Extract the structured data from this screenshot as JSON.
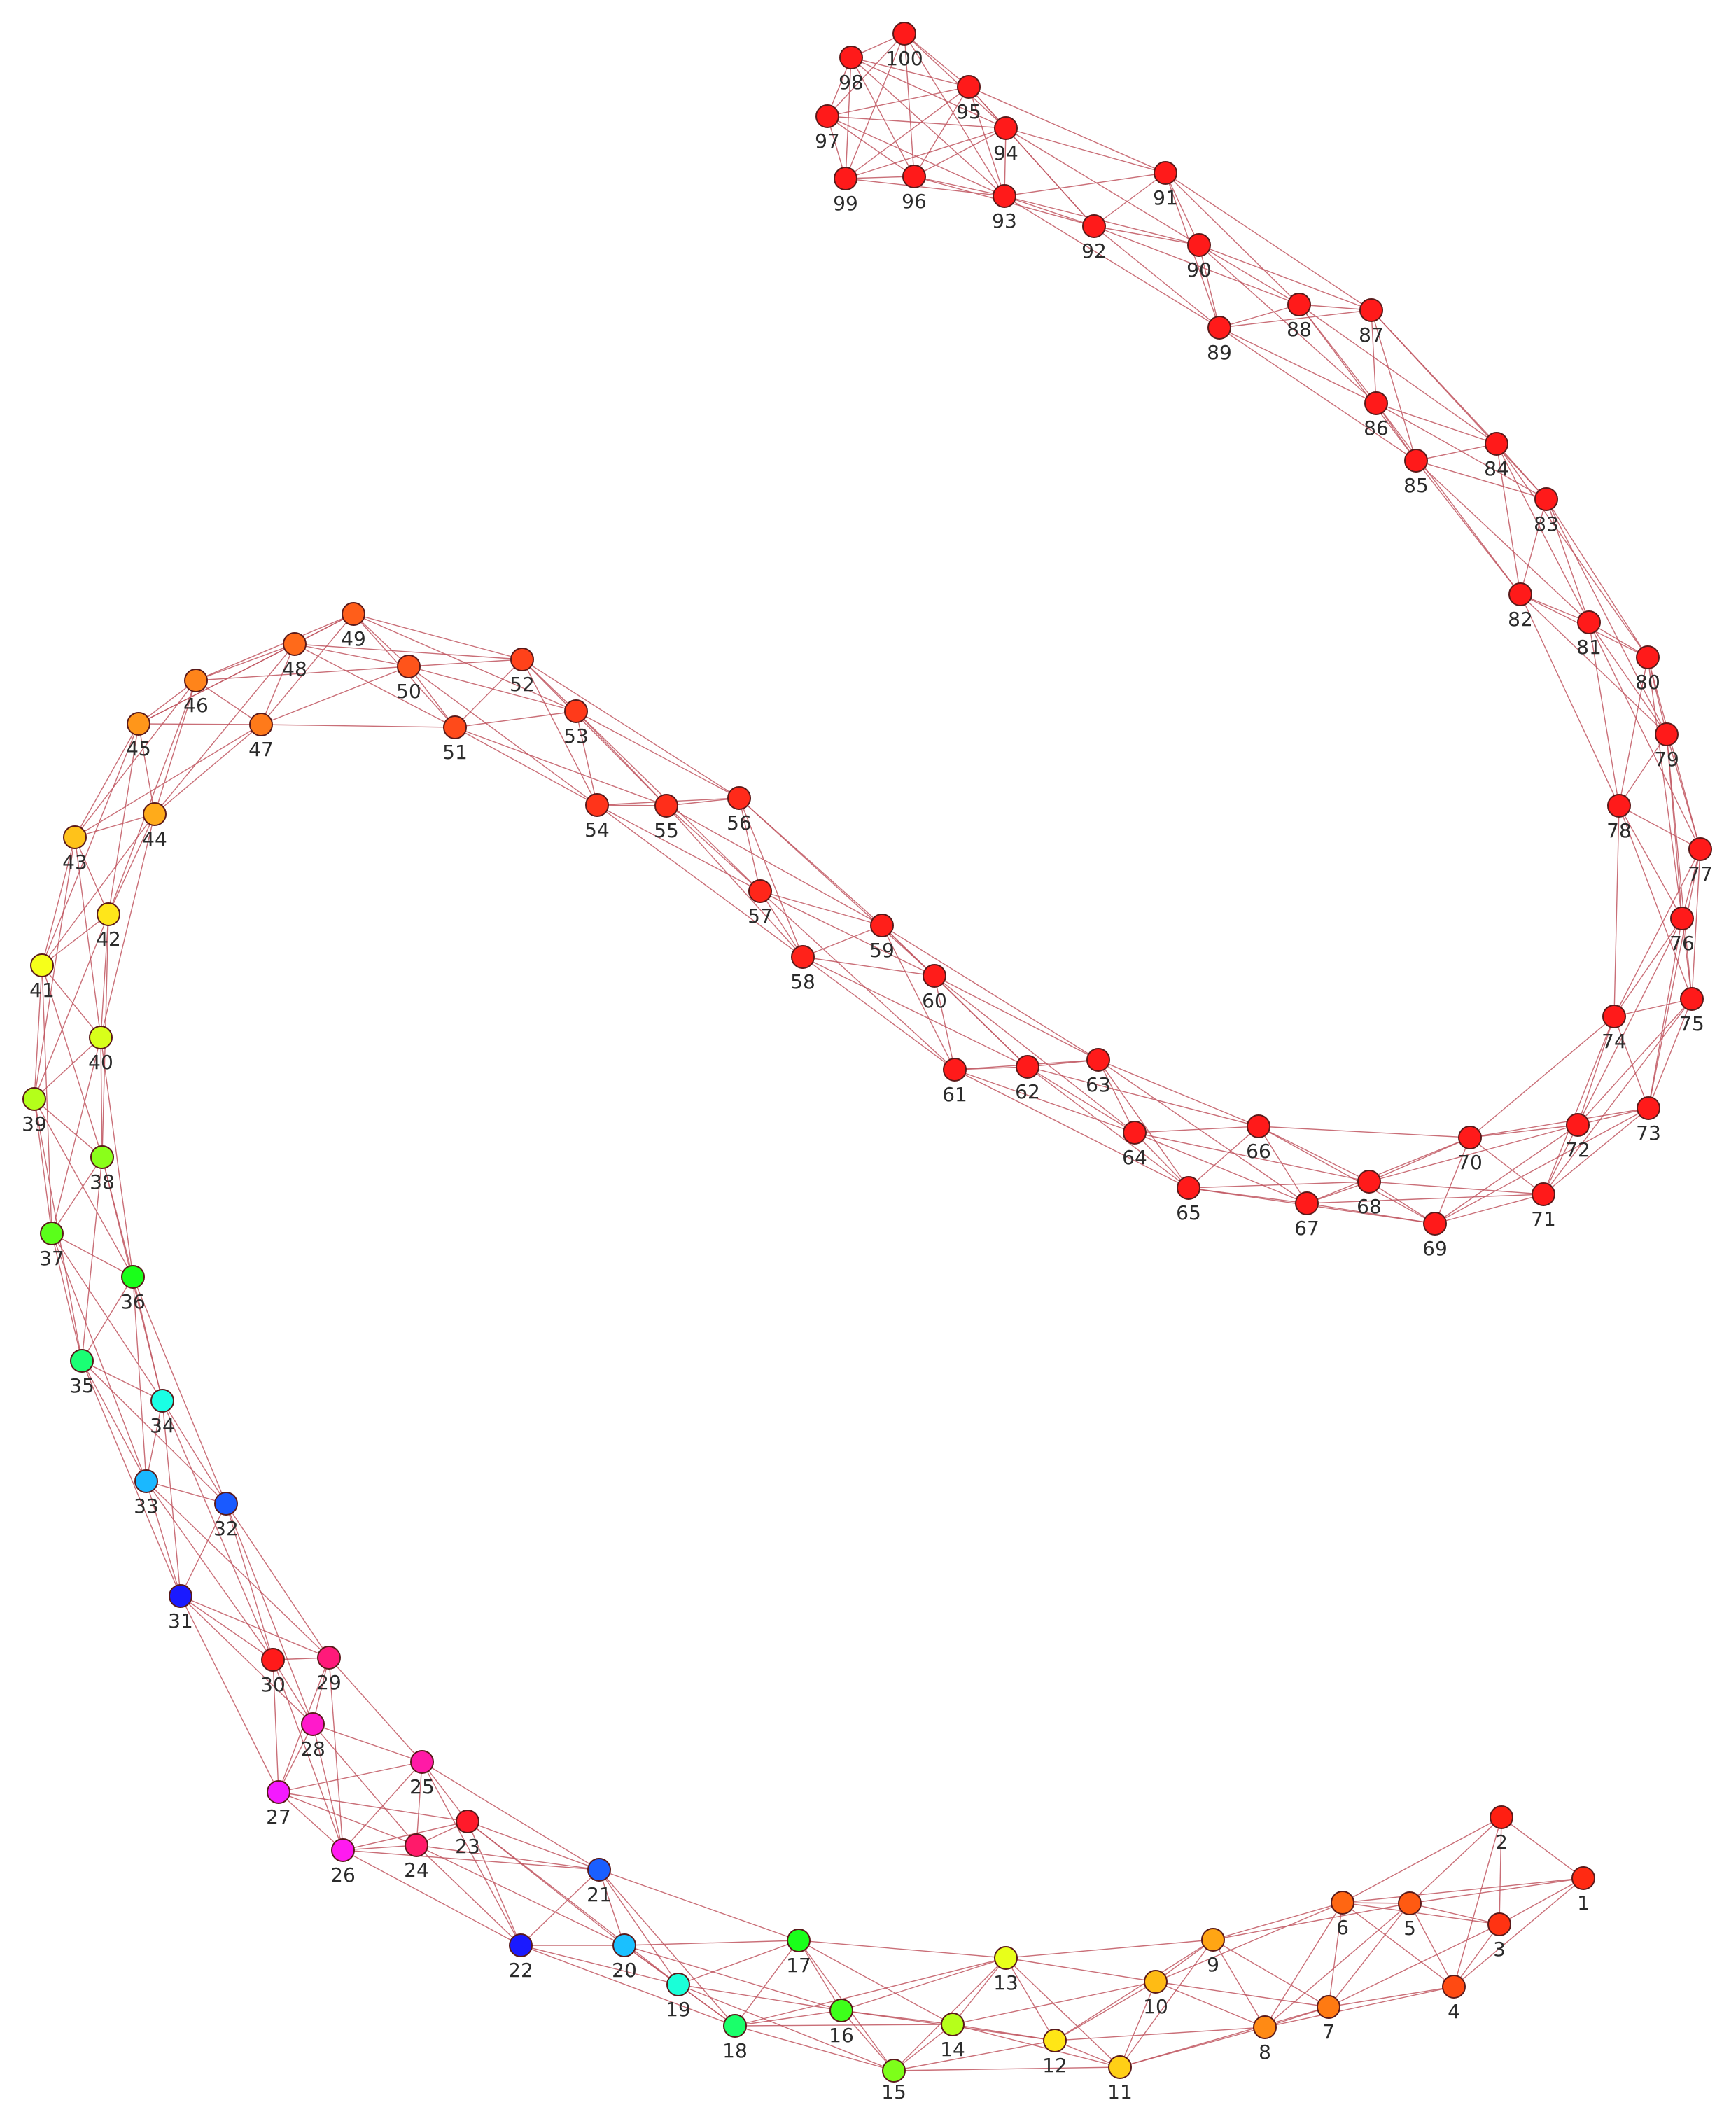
{
  "nodes": [
    {
      "id": 1,
      "label": "1",
      "color": "#ff2a12"
    },
    {
      "id": 2,
      "label": "2",
      "color": "#ff1f12"
    },
    {
      "id": 3,
      "label": "3",
      "color": "#ff3312"
    },
    {
      "id": 4,
      "label": "4",
      "color": "#ff4a12"
    },
    {
      "id": 5,
      "label": "5",
      "color": "#ff5a12"
    },
    {
      "id": 6,
      "label": "6",
      "color": "#ff6612"
    },
    {
      "id": 7,
      "label": "7",
      "color": "#ff7a12"
    },
    {
      "id": 8,
      "label": "8",
      "color": "#ff8a14"
    },
    {
      "id": 9,
      "label": "9",
      "color": "#ffa514"
    },
    {
      "id": 10,
      "label": "10",
      "color": "#ffbb14"
    },
    {
      "id": 11,
      "label": "11",
      "color": "#ffcf16"
    },
    {
      "id": 12,
      "label": "12",
      "color": "#ffe616"
    },
    {
      "id": 13,
      "label": "13",
      "color": "#e8ff1a"
    },
    {
      "id": 14,
      "label": "14",
      "color": "#b6ff1a"
    },
    {
      "id": 15,
      "label": "15",
      "color": "#7dff1a"
    },
    {
      "id": 16,
      "label": "16",
      "color": "#3dff1a"
    },
    {
      "id": 17,
      "label": "17",
      "color": "#1aff1a"
    },
    {
      "id": 18,
      "label": "18",
      "color": "#1aff6a"
    },
    {
      "id": 19,
      "label": "19",
      "color": "#1affd8"
    },
    {
      "id": 20,
      "label": "20",
      "color": "#1ac0ff"
    },
    {
      "id": 21,
      "label": "21",
      "color": "#1a5fff"
    },
    {
      "id": 22,
      "label": "22",
      "color": "#1a1aff"
    },
    {
      "id": 23,
      "label": "23",
      "color": "#ff1a2a"
    },
    {
      "id": 24,
      "label": "24",
      "color": "#ff1a6a"
    },
    {
      "id": 25,
      "label": "25",
      "color": "#ff1aa6"
    },
    {
      "id": 26,
      "label": "26",
      "color": "#ff1af0"
    },
    {
      "id": 27,
      "label": "27",
      "color": "#f41aff"
    },
    {
      "id": 28,
      "label": "28",
      "color": "#ff1acb"
    },
    {
      "id": 29,
      "label": "29",
      "color": "#ff1a7a"
    },
    {
      "id": 30,
      "label": "30",
      "color": "#ff1a1a"
    },
    {
      "id": 31,
      "label": "31",
      "color": "#1a1aff"
    },
    {
      "id": 32,
      "label": "32",
      "color": "#1a5aff"
    },
    {
      "id": 33,
      "label": "33",
      "color": "#1ab8ff"
    },
    {
      "id": 34,
      "label": "34",
      "color": "#1affe4"
    },
    {
      "id": 35,
      "label": "35",
      "color": "#1aff74"
    },
    {
      "id": 36,
      "label": "36",
      "color": "#1aff1a"
    },
    {
      "id": 37,
      "label": "37",
      "color": "#5aff1a"
    },
    {
      "id": 38,
      "label": "38",
      "color": "#8aff1a"
    },
    {
      "id": 39,
      "label": "39",
      "color": "#b4ff1a"
    },
    {
      "id": 40,
      "label": "40",
      "color": "#d8ff1a"
    },
    {
      "id": 41,
      "label": "41",
      "color": "#f6ff1a"
    },
    {
      "id": 42,
      "label": "42",
      "color": "#ffe61a"
    },
    {
      "id": 43,
      "label": "43",
      "color": "#ffc21a"
    },
    {
      "id": 44,
      "label": "44",
      "color": "#ffab1a"
    },
    {
      "id": 45,
      "label": "45",
      "color": "#ff961a"
    },
    {
      "id": 46,
      "label": "46",
      "color": "#ff841a"
    },
    {
      "id": 47,
      "label": "47",
      "color": "#ff7a1a"
    },
    {
      "id": 48,
      "label": "48",
      "color": "#ff6a1a"
    },
    {
      "id": 49,
      "label": "49",
      "color": "#ff5e1a"
    },
    {
      "id": 50,
      "label": "50",
      "color": "#ff541a"
    },
    {
      "id": 51,
      "label": "51",
      "color": "#ff4a1a"
    },
    {
      "id": 52,
      "label": "52",
      "color": "#ff421a"
    },
    {
      "id": 53,
      "label": "53",
      "color": "#ff3a1a"
    },
    {
      "id": 54,
      "label": "54",
      "color": "#ff341a"
    },
    {
      "id": 55,
      "label": "55",
      "color": "#ff2e1a"
    },
    {
      "id": 56,
      "label": "56",
      "color": "#ff2a1a"
    },
    {
      "id": 57,
      "label": "57",
      "color": "#ff261a"
    },
    {
      "id": 58,
      "label": "58",
      "color": "#ff221a"
    },
    {
      "id": 59,
      "label": "59",
      "color": "#ff1f1a"
    },
    {
      "id": 60,
      "label": "60",
      "color": "#ff1c1a"
    },
    {
      "id": 61,
      "label": "61",
      "color": "#ff1a1a"
    },
    {
      "id": 62,
      "label": "62",
      "color": "#ff1a1a"
    },
    {
      "id": 63,
      "label": "63",
      "color": "#ff1a1a"
    },
    {
      "id": 64,
      "label": "64",
      "color": "#ff1a1a"
    },
    {
      "id": 65,
      "label": "65",
      "color": "#ff1a1a"
    },
    {
      "id": 66,
      "label": "66",
      "color": "#ff1a1a"
    },
    {
      "id": 67,
      "label": "67",
      "color": "#ff1a1a"
    },
    {
      "id": 68,
      "label": "68",
      "color": "#ff1a1a"
    },
    {
      "id": 69,
      "label": "69",
      "color": "#ff1a1a"
    },
    {
      "id": 70,
      "label": "70",
      "color": "#ff1a1a"
    },
    {
      "id": 71,
      "label": "71",
      "color": "#ff1a1a"
    },
    {
      "id": 72,
      "label": "72",
      "color": "#ff1a1a"
    },
    {
      "id": 73,
      "label": "73",
      "color": "#ff1a1a"
    },
    {
      "id": 74,
      "label": "74",
      "color": "#ff1a1a"
    },
    {
      "id": 75,
      "label": "75",
      "color": "#ff1a1a"
    },
    {
      "id": 76,
      "label": "76",
      "color": "#ff1a1a"
    },
    {
      "id": 77,
      "label": "77",
      "color": "#ff1a1a"
    },
    {
      "id": 78,
      "label": "78",
      "color": "#ff1a1a"
    },
    {
      "id": 79,
      "label": "79",
      "color": "#ff1a1a"
    },
    {
      "id": 80,
      "label": "80",
      "color": "#ff1a1a"
    },
    {
      "id": 81,
      "label": "81",
      "color": "#ff1a1a"
    },
    {
      "id": 82,
      "label": "82",
      "color": "#ff1a1a"
    },
    {
      "id": 83,
      "label": "83",
      "color": "#ff1a1a"
    },
    {
      "id": 84,
      "label": "84",
      "color": "#ff1a1a"
    },
    {
      "id": 85,
      "label": "85",
      "color": "#ff1a1a"
    },
    {
      "id": 86,
      "label": "86",
      "color": "#ff1a1a"
    },
    {
      "id": 87,
      "label": "87",
      "color": "#ff1a1a"
    },
    {
      "id": 88,
      "label": "88",
      "color": "#ff1a1a"
    },
    {
      "id": 89,
      "label": "89",
      "color": "#ff1a1a"
    },
    {
      "id": 90,
      "label": "90",
      "color": "#ff1a1a"
    },
    {
      "id": 91,
      "label": "91",
      "color": "#ff1a1a"
    },
    {
      "id": 92,
      "label": "92",
      "color": "#ff1a1a"
    },
    {
      "id": 93,
      "label": "93",
      "color": "#ff1a1a"
    },
    {
      "id": 94,
      "label": "94",
      "color": "#ff1a1a"
    },
    {
      "id": 95,
      "label": "95",
      "color": "#ff1a1a"
    },
    {
      "id": 96,
      "label": "96",
      "color": "#ff1a1a"
    },
    {
      "id": 97,
      "label": "97",
      "color": "#ff1a1a"
    },
    {
      "id": 98,
      "label": "98",
      "color": "#ff1a1a"
    },
    {
      "id": 99,
      "label": "99",
      "color": "#ff1a1a"
    },
    {
      "id": 100,
      "label": "100",
      "color": "#ff1a1a"
    }
  ],
  "edge_color": "#c0555f"
}
